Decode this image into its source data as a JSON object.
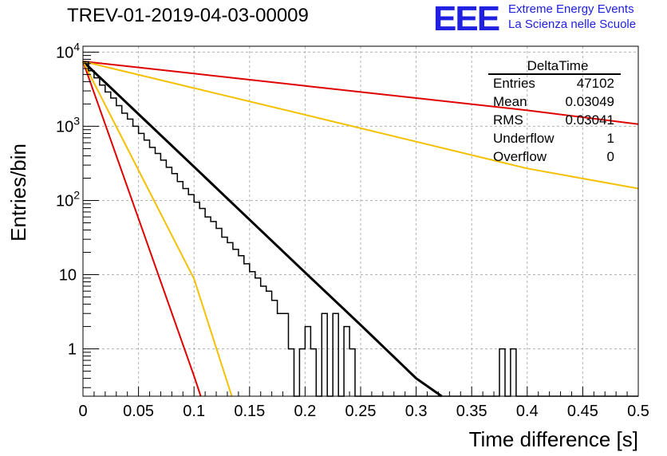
{
  "header": {
    "title": "TREV-01-2019-04-03-00009",
    "logo_mark": "EEE",
    "logo_line1": "Extreme Energy Events",
    "logo_line2": "La Scienza nelle Scuole"
  },
  "colors": {
    "histogram": "#000000",
    "fit": "#000000",
    "red_curves": "#e00000",
    "yellow_curves": "#f5c000",
    "grid": "#b0b0b0",
    "logo": "#2020e0"
  },
  "chart_data": {
    "type": "histogram",
    "title": "TREV-01-2019-04-03-00009",
    "xlabel": "Time difference [s]",
    "ylabel": "Entries/bin",
    "xlim": [
      0,
      0.5
    ],
    "ylim": [
      0.23,
      12000
    ],
    "y_scale": "log",
    "grid": true,
    "x_ticks": [
      "0",
      "0.05",
      "0.1",
      "0.15",
      "0.2",
      "0.25",
      "0.3",
      "0.35",
      "0.4",
      "0.45",
      "0.5"
    ],
    "y_ticks": [
      {
        "value": 1,
        "base": "1",
        "exp": ""
      },
      {
        "value": 10,
        "base": "10",
        "exp": ""
      },
      {
        "value": 100,
        "base": "10",
        "exp": "2"
      },
      {
        "value": 1000,
        "base": "10",
        "exp": "3"
      },
      {
        "value": 10000,
        "base": "10",
        "exp": "4"
      }
    ],
    "bin_width": 0.005,
    "histogram": [
      7400,
      5600,
      4500,
      3600,
      2900,
      2400,
      1900,
      1500,
      1250,
      1000,
      800,
      650,
      520,
      430,
      350,
      280,
      230,
      180,
      145,
      120,
      95,
      78,
      60,
      52,
      42,
      32,
      27,
      22,
      18,
      14,
      11,
      9,
      7,
      6,
      4.5,
      3,
      3,
      1,
      0,
      1,
      2,
      1,
      0,
      3,
      0,
      3,
      0,
      2,
      1,
      0,
      0,
      0,
      0,
      0,
      0,
      0,
      0,
      0,
      0,
      0,
      0,
      0,
      0,
      0,
      0,
      0,
      0,
      0,
      0,
      0,
      0,
      0,
      0,
      0,
      0,
      1,
      0,
      1,
      0,
      0,
      0,
      0,
      0,
      0,
      0,
      0,
      0,
      0,
      0,
      0,
      0,
      0,
      0,
      0,
      0,
      0,
      0,
      0,
      0,
      0
    ],
    "series": [
      {
        "name": "fit",
        "x": [
          0,
          0.05,
          0.1,
          0.15,
          0.2,
          0.25,
          0.3,
          0.323
        ],
        "y": [
          7500,
          1460,
          285,
          55,
          10.7,
          2.1,
          0.4,
          0.23
        ]
      },
      {
        "name": "red-steep",
        "x": [
          0,
          0.05,
          0.1,
          0.106
        ],
        "y": [
          7500,
          57,
          0.43,
          0.23
        ]
      },
      {
        "name": "yellow-steep",
        "x": [
          0,
          0.05,
          0.1,
          0.134
        ],
        "y": [
          7500,
          256,
          8.8,
          0.23
        ]
      },
      {
        "name": "red-shallow",
        "x": [
          0,
          0.1,
          0.2,
          0.3,
          0.4,
          0.5
        ],
        "y": [
          7500,
          5130,
          3510,
          2400,
          1640,
          1070
        ]
      },
      {
        "name": "yellow-shallow",
        "x": [
          0,
          0.1,
          0.2,
          0.3,
          0.4,
          0.5
        ],
        "y": [
          7500,
          3270,
          1430,
          620,
          270,
          145
        ]
      }
    ],
    "stats": {
      "title": "DeltaTime",
      "rows": [
        {
          "label": "Entries",
          "value": "47102"
        },
        {
          "label": "Mean",
          "value": "0.03049"
        },
        {
          "label": "RMS",
          "value": "0.03041"
        },
        {
          "label": "Underflow",
          "value": "1"
        },
        {
          "label": "Overflow",
          "value": "0"
        }
      ]
    }
  }
}
